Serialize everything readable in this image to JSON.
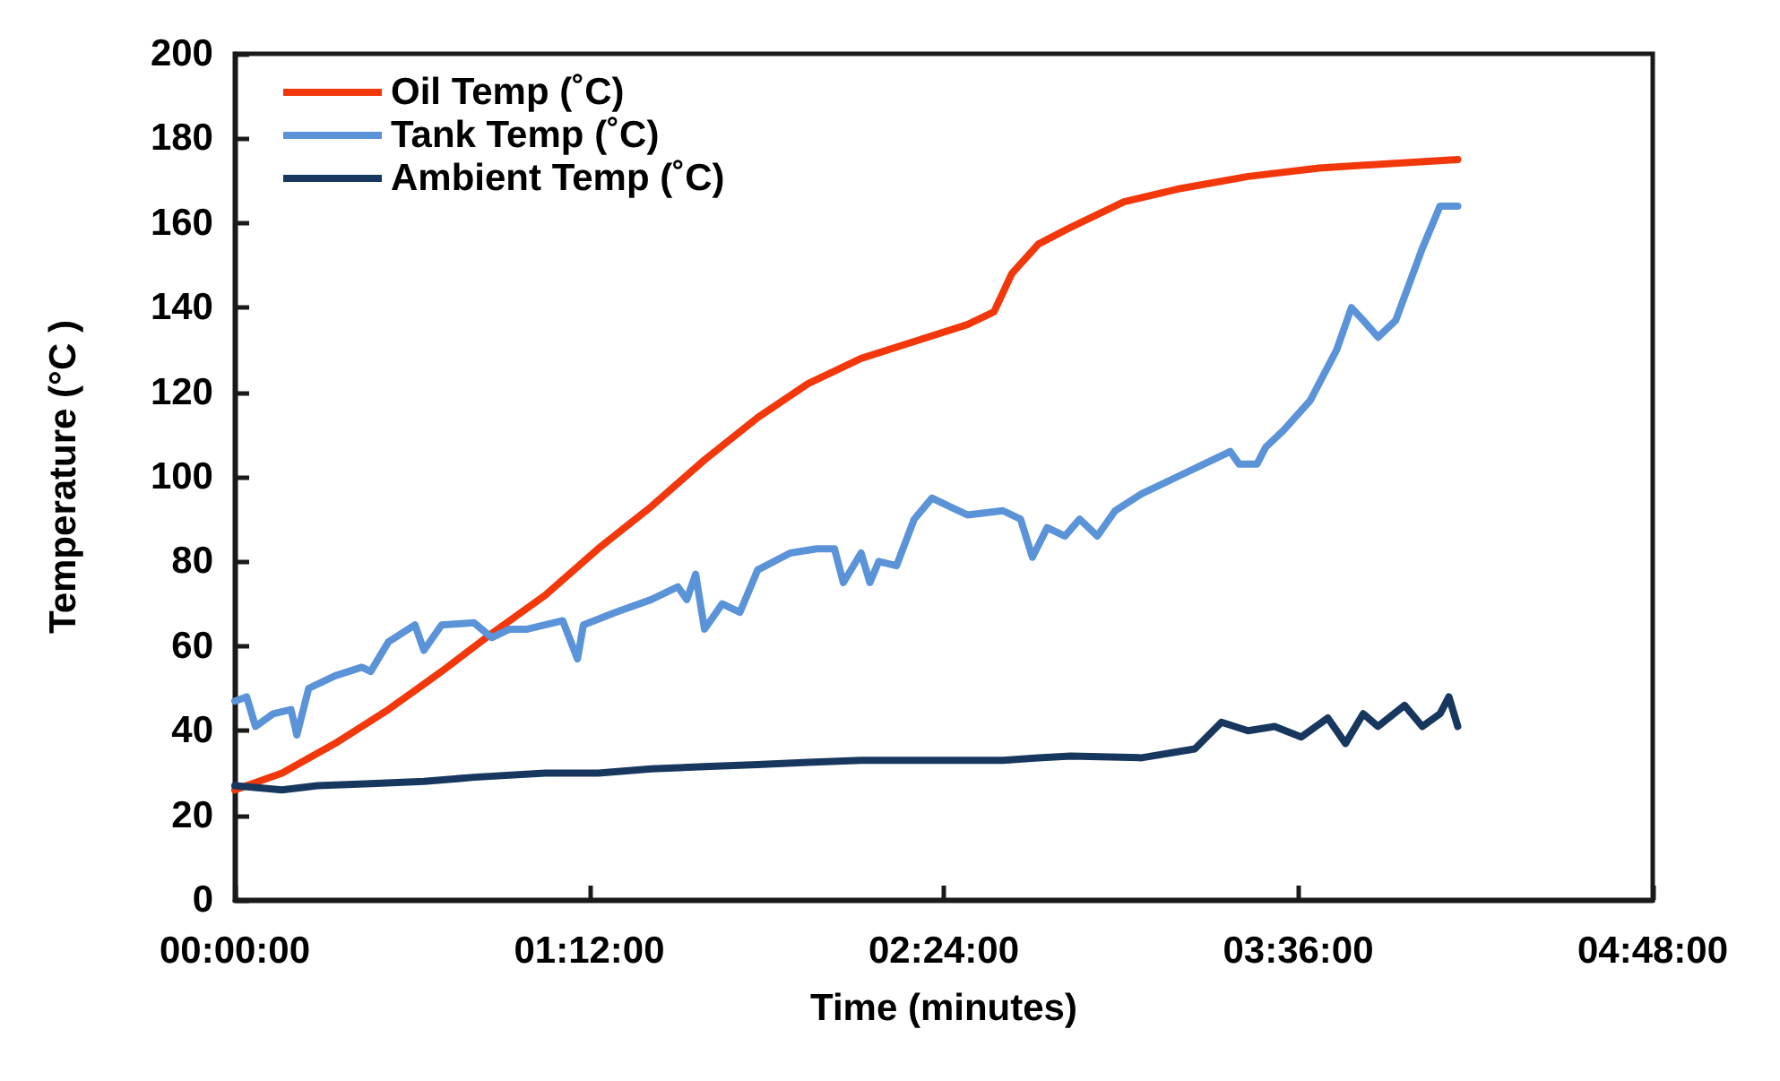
{
  "chart_data": {
    "type": "line",
    "xlabel": "Time (minutes)",
    "ylabel": "Temperature (°C )",
    "xlim": [
      0,
      4.8
    ],
    "xticks": [
      {
        "value": 0,
        "label": "00:00:00"
      },
      {
        "value": 1.2,
        "label": "01:12:00"
      },
      {
        "value": 2.4,
        "label": "02:24:00"
      },
      {
        "value": 3.6,
        "label": "03:36:00"
      },
      {
        "value": 4.8,
        "label": "04:48:00"
      }
    ],
    "ylim": [
      0,
      200
    ],
    "yticks": [
      0,
      20,
      40,
      60,
      80,
      100,
      120,
      140,
      160,
      180,
      200
    ],
    "grid": false,
    "legend": "top left",
    "marker": "none",
    "line_style": "solid",
    "series": [
      {
        "name": "Oil Temp (˚C)",
        "color": "#f2380b",
        "x": [
          0,
          0.16,
          0.34,
          0.52,
          0.7,
          0.87,
          1.05,
          1.23,
          1.41,
          1.59,
          1.77,
          1.94,
          2.12,
          2.3,
          2.48,
          2.57,
          2.63,
          2.72,
          2.83,
          3.01,
          3.19,
          3.43,
          3.67,
          3.9,
          4.14
        ],
        "values": [
          26,
          30,
          37,
          45,
          54,
          63,
          72,
          83,
          93,
          104,
          114,
          122,
          128,
          132,
          136,
          139,
          148,
          155,
          159,
          165,
          168,
          171,
          173,
          174,
          175
        ]
      },
      {
        "name": "Tank Temp (˚C)",
        "color": "#5b93d8",
        "x": [
          0,
          0.04,
          0.07,
          0.13,
          0.19,
          0.21,
          0.25,
          0.34,
          0.43,
          0.46,
          0.52,
          0.61,
          0.64,
          0.7,
          0.81,
          0.87,
          0.93,
          0.99,
          1.11,
          1.16,
          1.18,
          1.29,
          1.41,
          1.5,
          1.53,
          1.56,
          1.59,
          1.65,
          1.71,
          1.77,
          1.88,
          1.97,
          2.03,
          2.06,
          2.12,
          2.15,
          2.18,
          2.24,
          2.3,
          2.36,
          2.42,
          2.48,
          2.6,
          2.66,
          2.7,
          2.75,
          2.81,
          2.86,
          2.92,
          2.98,
          3.07,
          3.19,
          3.31,
          3.37,
          3.4,
          3.46,
          3.49,
          3.55,
          3.64,
          3.73,
          3.78,
          3.82,
          3.87,
          3.93,
          4.02,
          4.08,
          4.14
        ],
        "values": [
          47,
          48,
          41,
          44,
          45,
          39,
          50,
          53,
          55,
          54,
          61,
          65,
          59,
          65,
          65.5,
          62,
          64,
          64,
          66,
          57,
          65,
          68,
          71,
          74,
          71,
          77,
          64,
          70,
          68,
          78,
          82,
          83,
          83,
          75,
          82,
          75,
          80,
          79,
          90,
          95,
          93,
          91,
          92,
          90,
          81,
          88,
          86,
          90,
          86,
          92,
          96,
          100,
          104,
          106,
          103,
          103,
          107,
          111,
          118,
          130,
          140,
          137,
          133,
          137,
          154,
          164,
          164
        ]
      },
      {
        "name": "Ambient Temp (˚C)",
        "color": "#17375e",
        "x": [
          0,
          0.16,
          0.28,
          0.46,
          0.64,
          0.81,
          1.05,
          1.23,
          1.41,
          1.59,
          1.77,
          1.94,
          2.12,
          2.3,
          2.48,
          2.6,
          2.72,
          2.83,
          3.07,
          3.25,
          3.34,
          3.43,
          3.52,
          3.61,
          3.7,
          3.76,
          3.82,
          3.87,
          3.96,
          4.02,
          4.08,
          4.11,
          4.14
        ],
        "values": [
          27,
          26,
          27,
          27.5,
          28,
          29,
          30,
          30,
          31,
          31.5,
          32,
          32.5,
          33,
          33,
          33,
          33,
          33.6,
          34,
          33.6,
          35.7,
          42,
          40,
          41,
          38.5,
          43,
          37,
          44,
          41,
          46,
          41,
          44,
          48,
          41
        ]
      }
    ]
  }
}
